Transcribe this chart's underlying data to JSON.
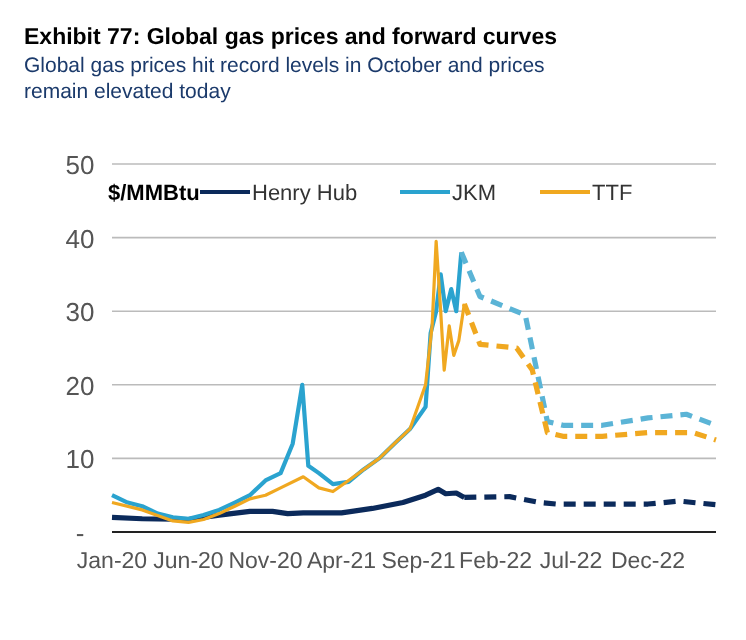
{
  "chart_data": {
    "type": "line",
    "title": "Exhibit 77: Global gas prices and forward curves",
    "subtitle": "Global gas prices hit record levels in October and prices remain elevated today",
    "ylabel": "$/MMBtu",
    "xlim": [
      "2020-01-01",
      "2023-04-15"
    ],
    "xticks": [
      {
        "value": "2020-01-01",
        "label": "Jan-20"
      },
      {
        "value": "2020-06-01",
        "label": "Jun-20"
      },
      {
        "value": "2020-11-01",
        "label": "Nov-20"
      },
      {
        "value": "2021-04-01",
        "label": "Apr-21"
      },
      {
        "value": "2021-09-01",
        "label": "Sep-21"
      },
      {
        "value": "2022-02-01",
        "label": "Feb-22"
      },
      {
        "value": "2022-07-01",
        "label": "Jul-22"
      },
      {
        "value": "2022-12-01",
        "label": "Dec-22"
      }
    ],
    "ylim": [
      0,
      50
    ],
    "yticks": [
      {
        "value": 0,
        "label": "-"
      },
      10,
      20,
      30,
      40,
      50
    ],
    "grid": "y",
    "legend": "top",
    "marker": "none",
    "series": [
      {
        "name": "Henry Hub",
        "color": "#0b2a5b",
        "line_style": "solid",
        "x": [
          "2020-01-01",
          "2020-03-01",
          "2020-06-01",
          "2020-08-01",
          "2020-10-01",
          "2020-11-15",
          "2020-12-15",
          "2021-01-15",
          "2021-04-01",
          "2021-06-01",
          "2021-08-01",
          "2021-09-15",
          "2021-10-10",
          "2021-10-25",
          "2021-11-15",
          "2021-12-01"
        ],
        "values": [
          2,
          1.8,
          1.7,
          2.3,
          2.8,
          2.8,
          2.5,
          2.6,
          2.6,
          3.2,
          4,
          5,
          5.8,
          5.2,
          5.3,
          4.7
        ]
      },
      {
        "name": "JKM",
        "color": "#2aa3cf",
        "line_style": "solid",
        "x": [
          "2020-01-01",
          "2020-02-01",
          "2020-03-01",
          "2020-04-01",
          "2020-05-01",
          "2020-06-01",
          "2020-07-01",
          "2020-08-01",
          "2020-09-01",
          "2020-10-01",
          "2020-11-01",
          "2020-12-01",
          "2020-12-25",
          "2021-01-13",
          "2021-01-25",
          "2021-02-15",
          "2021-03-15",
          "2021-04-15",
          "2021-05-15",
          "2021-06-15",
          "2021-07-15",
          "2021-08-15",
          "2021-09-15",
          "2021-09-25",
          "2021-10-06",
          "2021-10-15",
          "2021-10-25",
          "2021-11-05",
          "2021-11-15",
          "2021-11-25"
        ],
        "values": [
          5,
          4,
          3.5,
          2.5,
          2,
          1.8,
          2.3,
          3,
          4,
          5,
          7,
          8,
          12,
          20,
          9,
          8,
          6.5,
          6.8,
          8.5,
          10,
          12,
          14,
          17,
          27,
          30,
          35,
          30,
          33,
          30,
          38
        ]
      },
      {
        "name": "TTF",
        "color": "#f0a820",
        "line_style": "solid",
        "x": [
          "2020-01-01",
          "2020-03-01",
          "2020-05-01",
          "2020-06-01",
          "2020-07-01",
          "2020-08-01",
          "2020-09-01",
          "2020-10-01",
          "2020-11-01",
          "2020-12-01",
          "2021-01-15",
          "2021-02-15",
          "2021-03-15",
          "2021-04-15",
          "2021-05-15",
          "2021-06-15",
          "2021-07-15",
          "2021-08-15",
          "2021-09-15",
          "2021-09-28",
          "2021-10-06",
          "2021-10-15",
          "2021-10-22",
          "2021-11-01",
          "2021-11-10",
          "2021-11-20",
          "2021-12-01"
        ],
        "values": [
          4,
          3,
          1.5,
          1.3,
          1.7,
          2.5,
          3.5,
          4.5,
          5,
          6,
          7.5,
          6,
          5.5,
          7,
          8.5,
          10,
          12,
          14,
          20,
          28,
          39.5,
          30,
          22,
          28,
          24,
          26,
          31
        ]
      },
      {
        "color": "#0b2a5b",
        "line_style": "dashed",
        "x": [
          "2021-12-01",
          "2022-03-01",
          "2022-05-01",
          "2022-06-01",
          "2022-12-01",
          "2023-02-01",
          "2023-04-15"
        ],
        "values": [
          4.7,
          4.8,
          4,
          3.8,
          3.8,
          4.2,
          3.7
        ]
      },
      {
        "color": "#5bb4d6",
        "line_style": "dashed",
        "x": [
          "2021-11-25",
          "2022-01-01",
          "2022-04-01",
          "2022-05-15",
          "2022-06-15",
          "2022-09-01",
          "2022-12-01",
          "2023-02-15",
          "2023-04-15"
        ],
        "values": [
          38,
          32,
          29.5,
          15,
          14.5,
          14.5,
          15.5,
          16,
          14.5
        ]
      },
      {
        "color": "#f0a820",
        "line_style": "dashed",
        "x": [
          "2021-12-01",
          "2022-01-01",
          "2022-03-15",
          "2022-04-15",
          "2022-05-15",
          "2022-06-15",
          "2022-09-01",
          "2022-12-01",
          "2023-03-01",
          "2023-04-15"
        ],
        "values": [
          31,
          25.5,
          25,
          22,
          13.5,
          13,
          13,
          13.5,
          13.5,
          12.5
        ]
      }
    ]
  }
}
